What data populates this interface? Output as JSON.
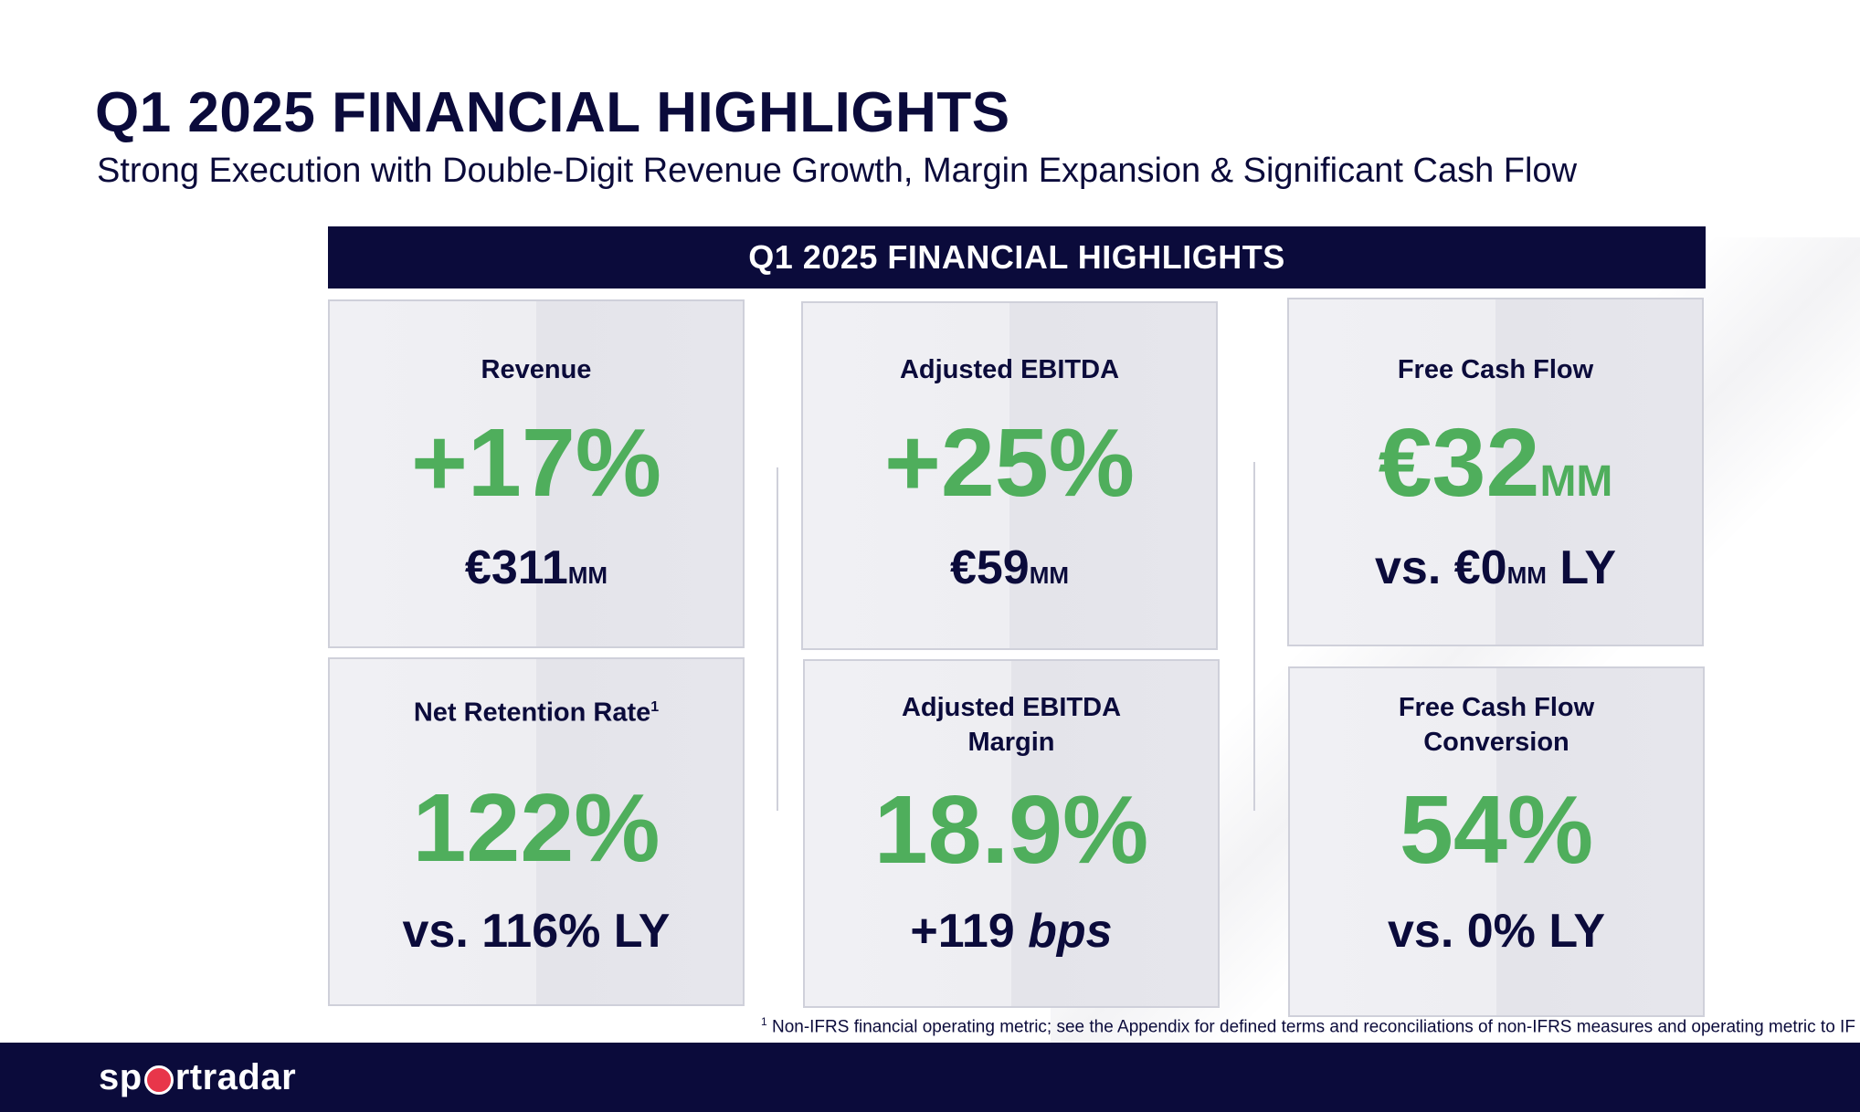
{
  "title": "Q1 2025 FINANCIAL HIGHLIGHTS",
  "subtitle": "Strong Execution with Double-Digit Revenue Growth, Margin Expansion & Significant Cash Flow",
  "banner": "Q1 2025 FINANCIAL HIGHLIGHTS",
  "cards": {
    "revenue": {
      "label": "Revenue",
      "big": "+17%",
      "sub_value": "€311",
      "sub_unit": "MM"
    },
    "ebitda": {
      "label": "Adjusted EBITDA",
      "big": "+25%",
      "sub_value": "€59",
      "sub_unit": "MM"
    },
    "fcf": {
      "label": "Free Cash Flow",
      "big_value": "€32",
      "big_unit": "MM",
      "sub_prefix": "vs. €0",
      "sub_unit": "MM",
      "sub_suffix": " LY"
    },
    "nrr": {
      "label": "Net Retention Rate",
      "label_sup": "1",
      "big": "122%",
      "sub": "vs. 116% LY"
    },
    "margin": {
      "label_line1": "Adjusted EBITDA",
      "label_line2": "Margin",
      "big": "18.9%",
      "sub_value": "+119 ",
      "sub_unit": "bps"
    },
    "conversion": {
      "label_line1": "Free Cash Flow",
      "label_line2": "Conversion",
      "big": "54%",
      "sub": "vs. 0% LY"
    }
  },
  "footnote": {
    "marker": "1",
    "text": " Non-IFRS financial operating metric; see the Appendix for defined terms and reconciliations of non-IFRS measures and operating metric to IF"
  },
  "footer": {
    "logo_pre": "sp",
    "logo_post": "rtradar"
  },
  "colors": {
    "navy": "#0b0b3b",
    "green": "#4fae5c",
    "logo_red": "#e8364a"
  }
}
